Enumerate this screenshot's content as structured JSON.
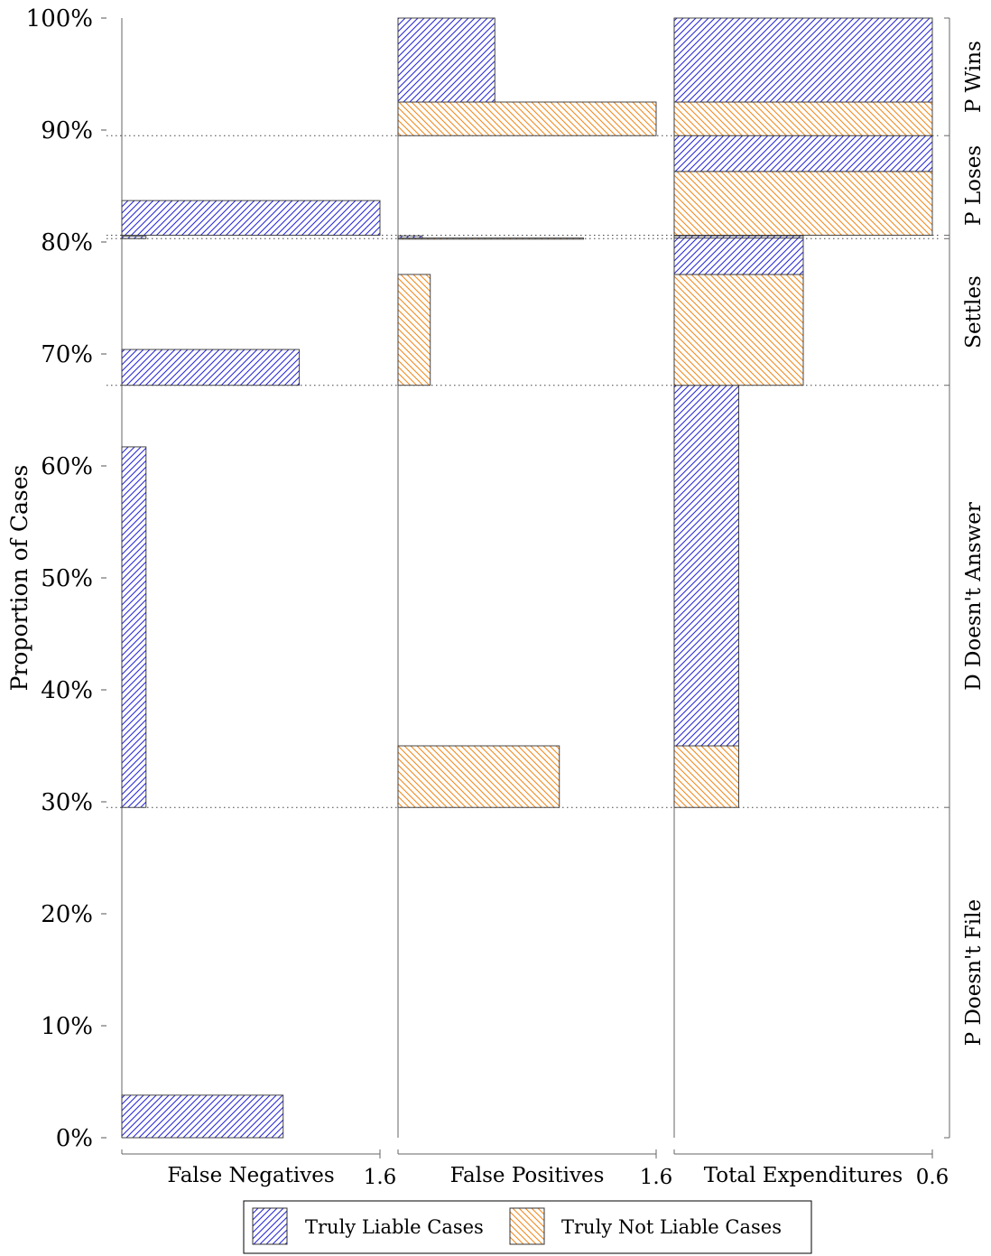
{
  "chart_data": {
    "type": "bar",
    "orientation": "horizontal",
    "title": "",
    "ylabel": "Proportion of Cases",
    "ylim": [
      0,
      100
    ],
    "y_ticks": [
      "0%",
      "10%",
      "20%",
      "30%",
      "40%",
      "50%",
      "60%",
      "70%",
      "80%",
      "90%",
      "100%"
    ],
    "y_tick_values": [
      0,
      10,
      20,
      30,
      40,
      50,
      60,
      70,
      80,
      90,
      100
    ],
    "grid": false,
    "legend_position": "bottom-center",
    "series": [
      {
        "name": "Truly Liable Cases",
        "color": "#2a2ad8",
        "pattern": "hatch-northeast"
      },
      {
        "name": "Truly Not Liable Cases",
        "color": "#f28a1e",
        "pattern": "hatch-northwest"
      }
    ],
    "regions": [
      {
        "label": "P Doesn't File",
        "from": 0,
        "to": 29.5
      },
      {
        "label": "D Doesn't Answer",
        "from": 29.5,
        "to": 67.2
      },
      {
        "label": "Settles",
        "from": 67.2,
        "to": 80.3
      },
      {
        "label": "P Loses",
        "from": 80.6,
        "to": 89.5
      },
      {
        "label": "P Wins",
        "from": 89.5,
        "to": 100
      }
    ],
    "boundaries": [
      29.5,
      67.2,
      80.3,
      80.6,
      89.5
    ],
    "panels": [
      {
        "xlabel": "False Negatives",
        "xmax": 1.6,
        "xmax_label": "1.6",
        "bars": [
          {
            "series": 0,
            "y0": 0,
            "y1": 3.8,
            "value": 1.0
          },
          {
            "series": 0,
            "y0": 29.5,
            "y1": 61.7,
            "value": 0.15
          },
          {
            "series": 0,
            "y0": 67.2,
            "y1": 70.4,
            "value": 1.1
          },
          {
            "series": 0,
            "y0": 80.3,
            "y1": 80.5,
            "value": 0.15
          },
          {
            "series": 0,
            "y0": 80.6,
            "y1": 83.7,
            "value": 1.6
          }
        ]
      },
      {
        "xlabel": "False Positives",
        "xmax": 1.6,
        "xmax_label": "1.6",
        "bars": [
          {
            "series": 1,
            "y0": 29.5,
            "y1": 35.0,
            "value": 1.0
          },
          {
            "series": 1,
            "y0": 67.2,
            "y1": 77.1,
            "value": 0.2
          },
          {
            "series": 0,
            "y0": 80.3,
            "y1": 80.55,
            "value": 0.15
          },
          {
            "series": 1,
            "y0": 80.3,
            "y1": 80.35,
            "value": 1.15
          },
          {
            "series": 1,
            "y0": 89.5,
            "y1": 92.5,
            "value": 1.6
          },
          {
            "series": 0,
            "y0": 92.5,
            "y1": 100,
            "value": 0.6
          }
        ]
      },
      {
        "xlabel": "Total Expenditures",
        "xmax": 0.6,
        "xmax_label": "0.6",
        "bars": [
          {
            "series": 1,
            "y0": 29.5,
            "y1": 35.0,
            "value": 0.15
          },
          {
            "series": 0,
            "y0": 35.0,
            "y1": 67.2,
            "value": 0.15
          },
          {
            "series": 1,
            "y0": 67.2,
            "y1": 77.1,
            "value": 0.3
          },
          {
            "series": 0,
            "y0": 77.1,
            "y1": 80.35,
            "value": 0.3
          },
          {
            "series": 0,
            "y0": 80.35,
            "y1": 80.55,
            "value": 0.3
          },
          {
            "series": 1,
            "y0": 80.6,
            "y1": 86.3,
            "value": 0.6
          },
          {
            "series": 0,
            "y0": 86.3,
            "y1": 89.5,
            "value": 0.6
          },
          {
            "series": 1,
            "y0": 89.5,
            "y1": 92.5,
            "value": 0.6
          },
          {
            "series": 0,
            "y0": 92.5,
            "y1": 100,
            "value": 0.6
          }
        ]
      }
    ]
  }
}
